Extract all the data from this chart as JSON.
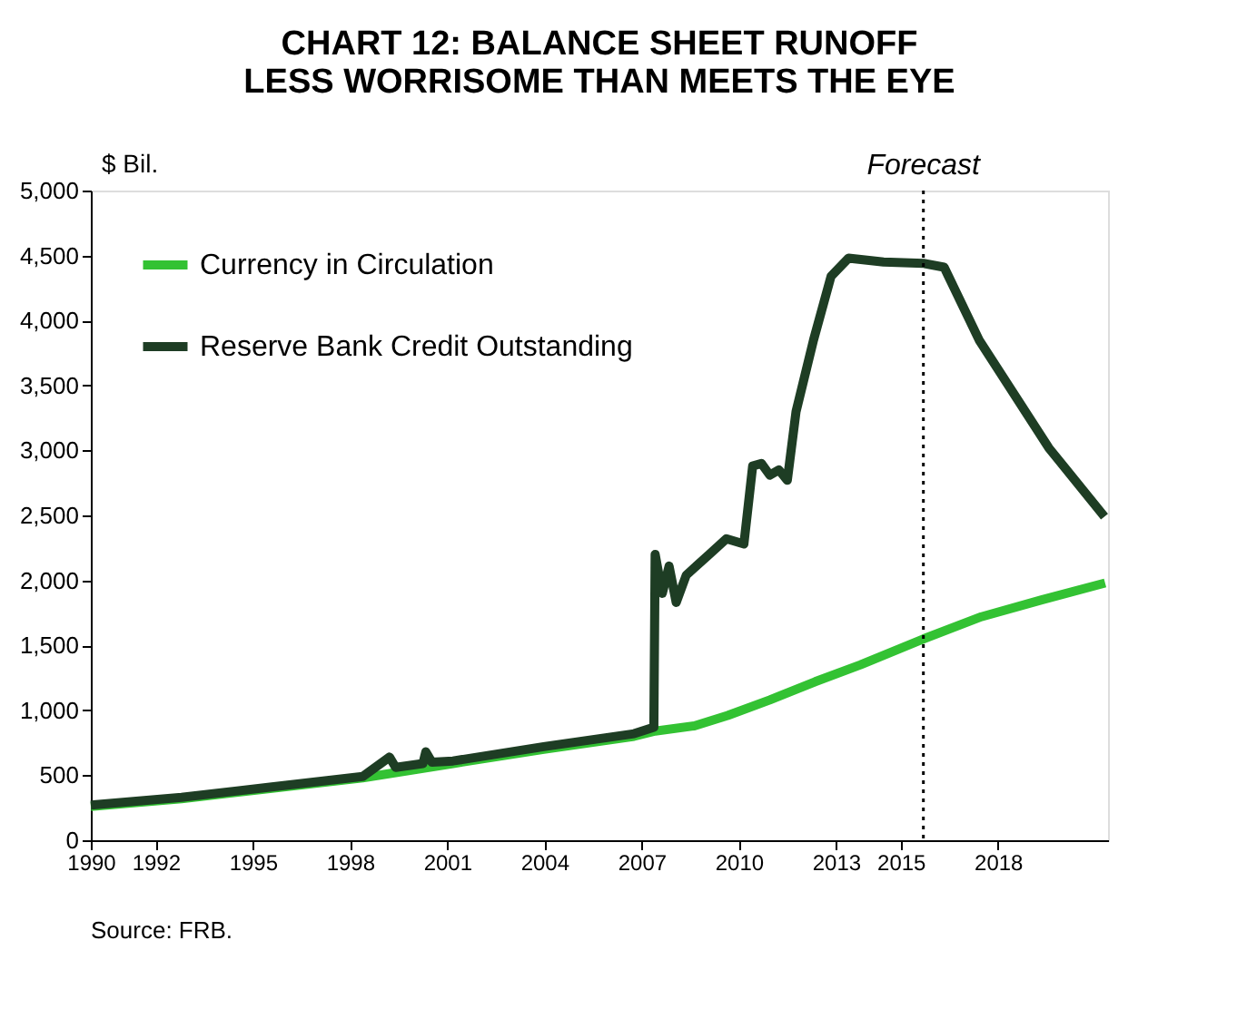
{
  "chart_data": {
    "type": "line",
    "title": "CHART 12: BALANCE SHEET RUNOFF LESS WORRISOME THAN MEETS THE EYE",
    "ylabel": "$ Bil.",
    "xlim": [
      1990,
      2021.4
    ],
    "xticks": [
      1990,
      1992,
      1995,
      1998,
      2001,
      2004,
      2007,
      2010,
      2013,
      2015,
      2018
    ],
    "ylim": [
      0,
      5000
    ],
    "yticks": [
      0,
      500,
      {
        "value": 1000,
        "label": "1,000"
      },
      {
        "value": 1500,
        "label": "1,500"
      },
      {
        "value": 2000,
        "label": "2,000"
      },
      {
        "value": 2500,
        "label": "2,500"
      },
      {
        "value": 3000,
        "label": "3,000"
      },
      {
        "value": 3500,
        "label": "3,500"
      },
      {
        "value": 4000,
        "label": "4,000"
      },
      {
        "value": 4500,
        "label": "4,500"
      },
      {
        "value": 5000,
        "label": "5,000"
      }
    ],
    "grid": false,
    "legend": "top left",
    "line_style": "solid",
    "marker": "none",
    "series": [
      {
        "name": "Currency in Circulation",
        "color": "#33c233",
        "x": [
          1990,
          1992.8,
          1995.59,
          1998.39,
          2001.18,
          2003.98,
          2006.77,
          2007.42,
          2008.63,
          2009.66,
          2010.96,
          2012.36,
          2013.76,
          2015.71,
          2017.49,
          2019.35,
          2021.31
        ],
        "values": [
          260,
          320,
          400,
          480,
          590,
          700,
          800,
          840,
          880,
          960,
          1080,
          1220,
          1350,
          1550,
          1720,
          1850,
          1980
        ]
      },
      {
        "name": "Reserve Bank Credit Outstanding",
        "color": "#1e3d24",
        "x": [
          1990,
          1992.8,
          1995.59,
          1998.39,
          1999.22,
          1999.41,
          2000.25,
          2000.34,
          2000.53,
          2001.18,
          2003.98,
          2006.77,
          2007.38,
          2007.42,
          2007.64,
          2007.85,
          2008.07,
          2008.38,
          2009.09,
          2009.62,
          2010.16,
          2010.43,
          2010.7,
          2010.96,
          2011.24,
          2011.5,
          2011.77,
          2012.31,
          2012.85,
          2013.39,
          2014.47,
          2015.7,
          2016.34,
          2017.42,
          2019.57,
          2021.29
        ],
        "values": [
          270,
          330,
          410,
          490,
          640,
          560,
          590,
          680,
          600,
          610,
          720,
          820,
          870,
          2200,
          1900,
          2110,
          1830,
          2040,
          2200,
          2320,
          2280,
          2880,
          2900,
          2810,
          2850,
          2770,
          3300,
          3850,
          4340,
          4480,
          4450,
          4440,
          4410,
          3850,
          3020,
          2490
        ]
      }
    ],
    "ref_lines": [
      {
        "axis": "x",
        "value": 2015.7,
        "label": "Forecast",
        "color": "#000000",
        "line_style": "dotted"
      }
    ],
    "annotations": [
      "Source: FRB."
    ]
  }
}
